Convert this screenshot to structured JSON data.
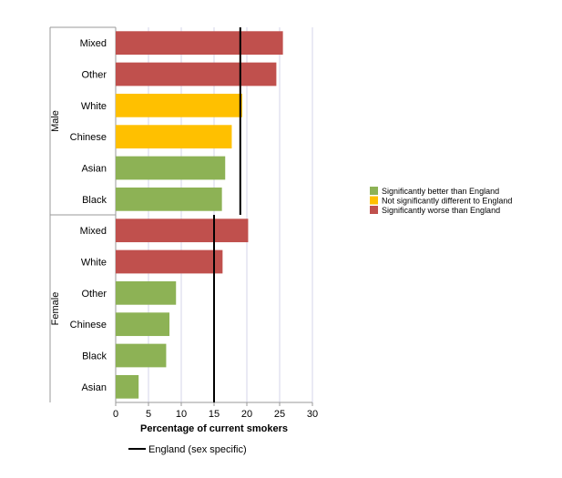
{
  "chart_data": {
    "type": "bar",
    "orientation": "horizontal",
    "xlabel": "Percentage of current smokers",
    "xlim": [
      0,
      30
    ],
    "xticks": [
      0,
      5,
      10,
      15,
      20,
      25,
      30
    ],
    "grid": "vertical",
    "groups": [
      {
        "name": "Male",
        "reference": 19,
        "bars": [
          {
            "category": "Mixed",
            "value": 25.5,
            "status": "worse"
          },
          {
            "category": "Other",
            "value": 24.5,
            "status": "worse"
          },
          {
            "category": "White",
            "value": 19.3,
            "status": "not_different"
          },
          {
            "category": "Chinese",
            "value": 17.7,
            "status": "not_different"
          },
          {
            "category": "Asian",
            "value": 16.7,
            "status": "better"
          },
          {
            "category": "Black",
            "value": 16.2,
            "status": "better"
          }
        ]
      },
      {
        "name": "Female",
        "reference": 15,
        "bars": [
          {
            "category": "Mixed",
            "value": 20.2,
            "status": "worse"
          },
          {
            "category": "White",
            "value": 16.3,
            "status": "worse"
          },
          {
            "category": "Other",
            "value": 9.2,
            "status": "better"
          },
          {
            "category": "Chinese",
            "value": 8.2,
            "status": "better"
          },
          {
            "category": "Black",
            "value": 7.7,
            "status": "better"
          },
          {
            "category": "Asian",
            "value": 3.5,
            "status": "better"
          }
        ]
      }
    ],
    "legend": {
      "placement": "right",
      "items": [
        {
          "status": "better",
          "label": "Significantly better than England",
          "color": "#8db255"
        },
        {
          "status": "not_different",
          "label": "Not significantly different to England",
          "color": "#ffc000"
        },
        {
          "status": "worse",
          "label": "Significantly worse than England",
          "color": "#c0504d"
        }
      ]
    },
    "reference_legend": {
      "label": "England (sex specific)",
      "color": "#000000"
    }
  }
}
